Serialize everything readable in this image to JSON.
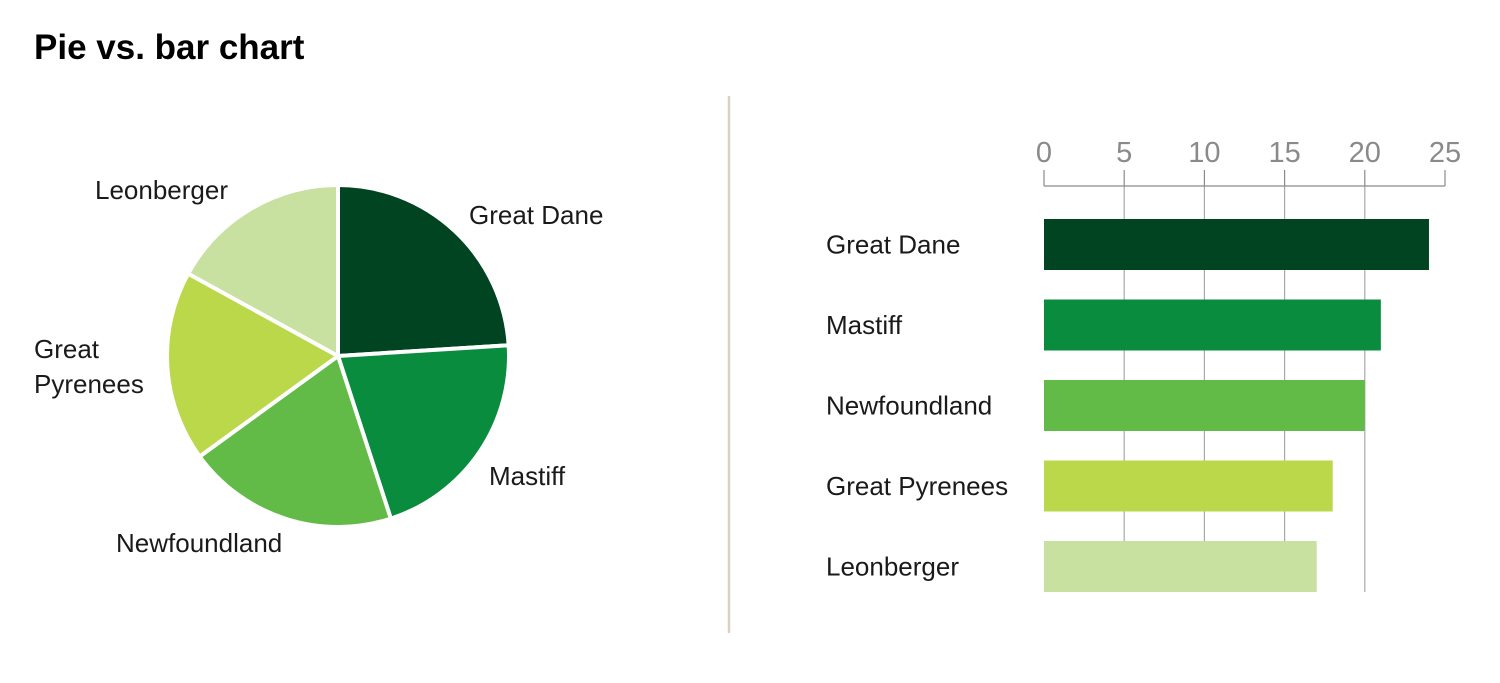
{
  "title": "Pie vs. bar chart",
  "colors": {
    "divider": "#d9d2c4",
    "gridline": "#a8a8a8",
    "axis": "#8a8a8a",
    "slice_border": "#ffffff"
  },
  "chart_data": [
    {
      "type": "pie",
      "start_angle_deg": 0,
      "direction": "clockwise",
      "slices": [
        {
          "label": "Great Dane",
          "value": 24,
          "color": "#004422"
        },
        {
          "label": "Mastiff",
          "value": 21,
          "color": "#0a8c3f"
        },
        {
          "label": "Newfoundland",
          "value": 20,
          "color": "#61bb46"
        },
        {
          "label": "Great Pyrenees",
          "label_lines": [
            "Great",
            "Pyrenees"
          ],
          "value": 18,
          "color": "#bbd84b"
        },
        {
          "label": "Leonberger",
          "value": 17,
          "color": "#c8e1a0"
        }
      ]
    },
    {
      "type": "bar",
      "orientation": "horizontal",
      "categories": [
        "Great Dane",
        "Mastiff",
        "Newfoundland",
        "Great Pyrenees",
        "Leonberger"
      ],
      "values": [
        24,
        21,
        20,
        18,
        17
      ],
      "colors": [
        "#004422",
        "#0a8c3f",
        "#61bb46",
        "#bbd84b",
        "#c8e1a0"
      ],
      "xlim": [
        0,
        25
      ],
      "xticks": [
        0,
        5,
        10,
        15,
        20,
        25
      ],
      "axis_position": "top",
      "grid": true
    }
  ]
}
